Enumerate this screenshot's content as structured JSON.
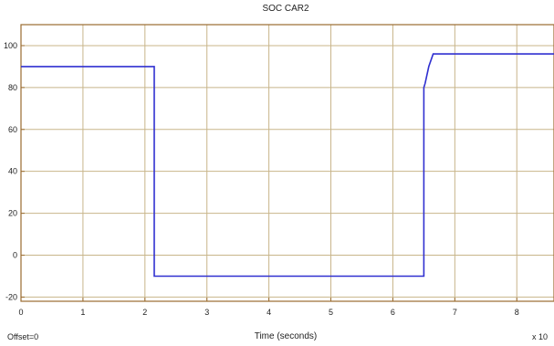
{
  "chart_data": {
    "type": "line",
    "title": "SOC CAR2",
    "xlabel": "Time (seconds)",
    "ylabel": "",
    "offset_label": "Offset=0",
    "x_multiplier_label": "x 10",
    "xlim": [
      0,
      8.6
    ],
    "ylim": [
      -22,
      110
    ],
    "x_ticks": [
      0,
      1,
      2,
      3,
      4,
      5,
      6,
      7,
      8
    ],
    "y_ticks": [
      -20,
      0,
      20,
      40,
      60,
      80,
      100
    ],
    "grid": true,
    "colors": {
      "background": "#ffffff",
      "plot_background": "#ffffff",
      "axes": "#9a6b2f",
      "grid": "#c8b58a",
      "series": "#3030d0"
    },
    "series": [
      {
        "x": [
          0,
          2.15,
          2.15,
          6.5,
          6.5,
          6.52,
          6.58,
          6.65,
          8.6
        ],
        "y": [
          90,
          90,
          -10,
          -10,
          80,
          82,
          90,
          96,
          96
        ]
      }
    ]
  }
}
